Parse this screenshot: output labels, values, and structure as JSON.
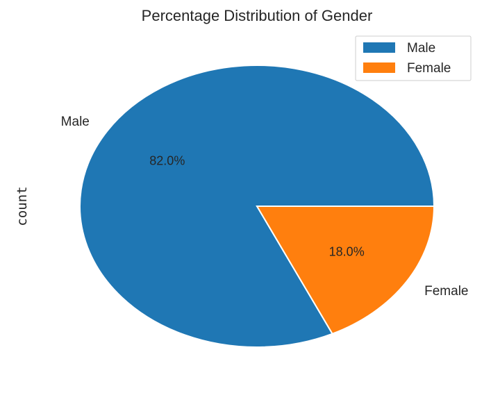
{
  "chart_data": {
    "type": "pie",
    "title": "Percentage Distribution of Gender",
    "ylabel": "count",
    "categories": [
      "Male",
      "Female"
    ],
    "values": [
      82.0,
      18.0
    ],
    "value_labels": [
      "82.0%",
      "18.0%"
    ],
    "colors": [
      "#1f77b4",
      "#ff7f0e"
    ],
    "legend": {
      "entries": [
        "Male",
        "Female"
      ],
      "placement": "top-right"
    }
  }
}
